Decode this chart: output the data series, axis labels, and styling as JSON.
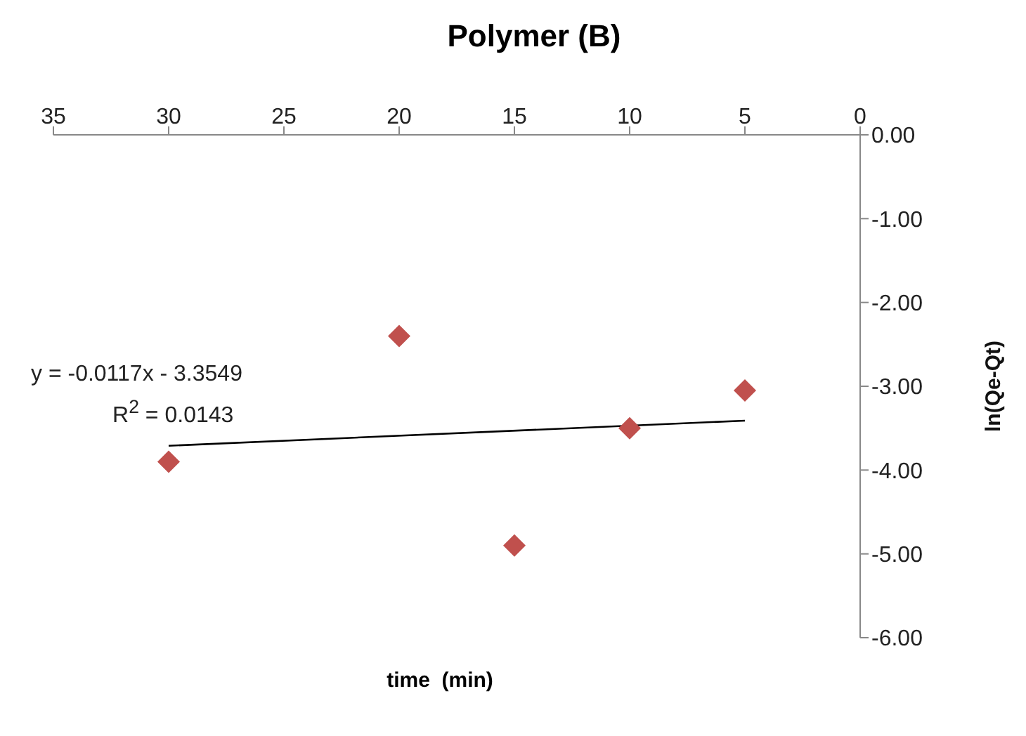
{
  "chart_data": {
    "type": "scatter",
    "title": "Polymer (B)",
    "xlabel": "time  (min)",
    "ylabel": "ln(Qe-Qt)",
    "annotations": [
      "y = -0.0117x - 3.3549",
      "R$^{2}$ = 0.0143"
    ],
    "series": [
      {
        "color": "#c0504d",
        "marker": "diamond",
        "x": [
          30,
          20,
          15,
          10,
          5
        ],
        "values": [
          -3.9,
          -2.4,
          -4.9,
          -3.5,
          -3.05
        ]
      },
      {
        "type": "line",
        "color": "#000000",
        "marker": "none",
        "x": [
          30,
          5
        ],
        "values": [
          -3.71,
          -3.41
        ]
      }
    ],
    "xlim": [
      35,
      0
    ],
    "xticks": [
      35,
      30,
      25,
      20,
      15,
      10,
      5,
      0
    ],
    "ylim": [
      -6,
      0
    ],
    "yticks": [
      {
        "value": 0,
        "label": "0.00"
      },
      {
        "value": -1,
        "label": "-1.00"
      },
      {
        "value": -2,
        "label": "-2.00"
      },
      {
        "value": -3,
        "label": "-3.00"
      },
      {
        "value": -4,
        "label": "-4.00"
      },
      {
        "value": -5,
        "label": "-5.00"
      },
      {
        "value": -6,
        "label": "-6.00"
      }
    ],
    "grid": false,
    "legend": false
  }
}
